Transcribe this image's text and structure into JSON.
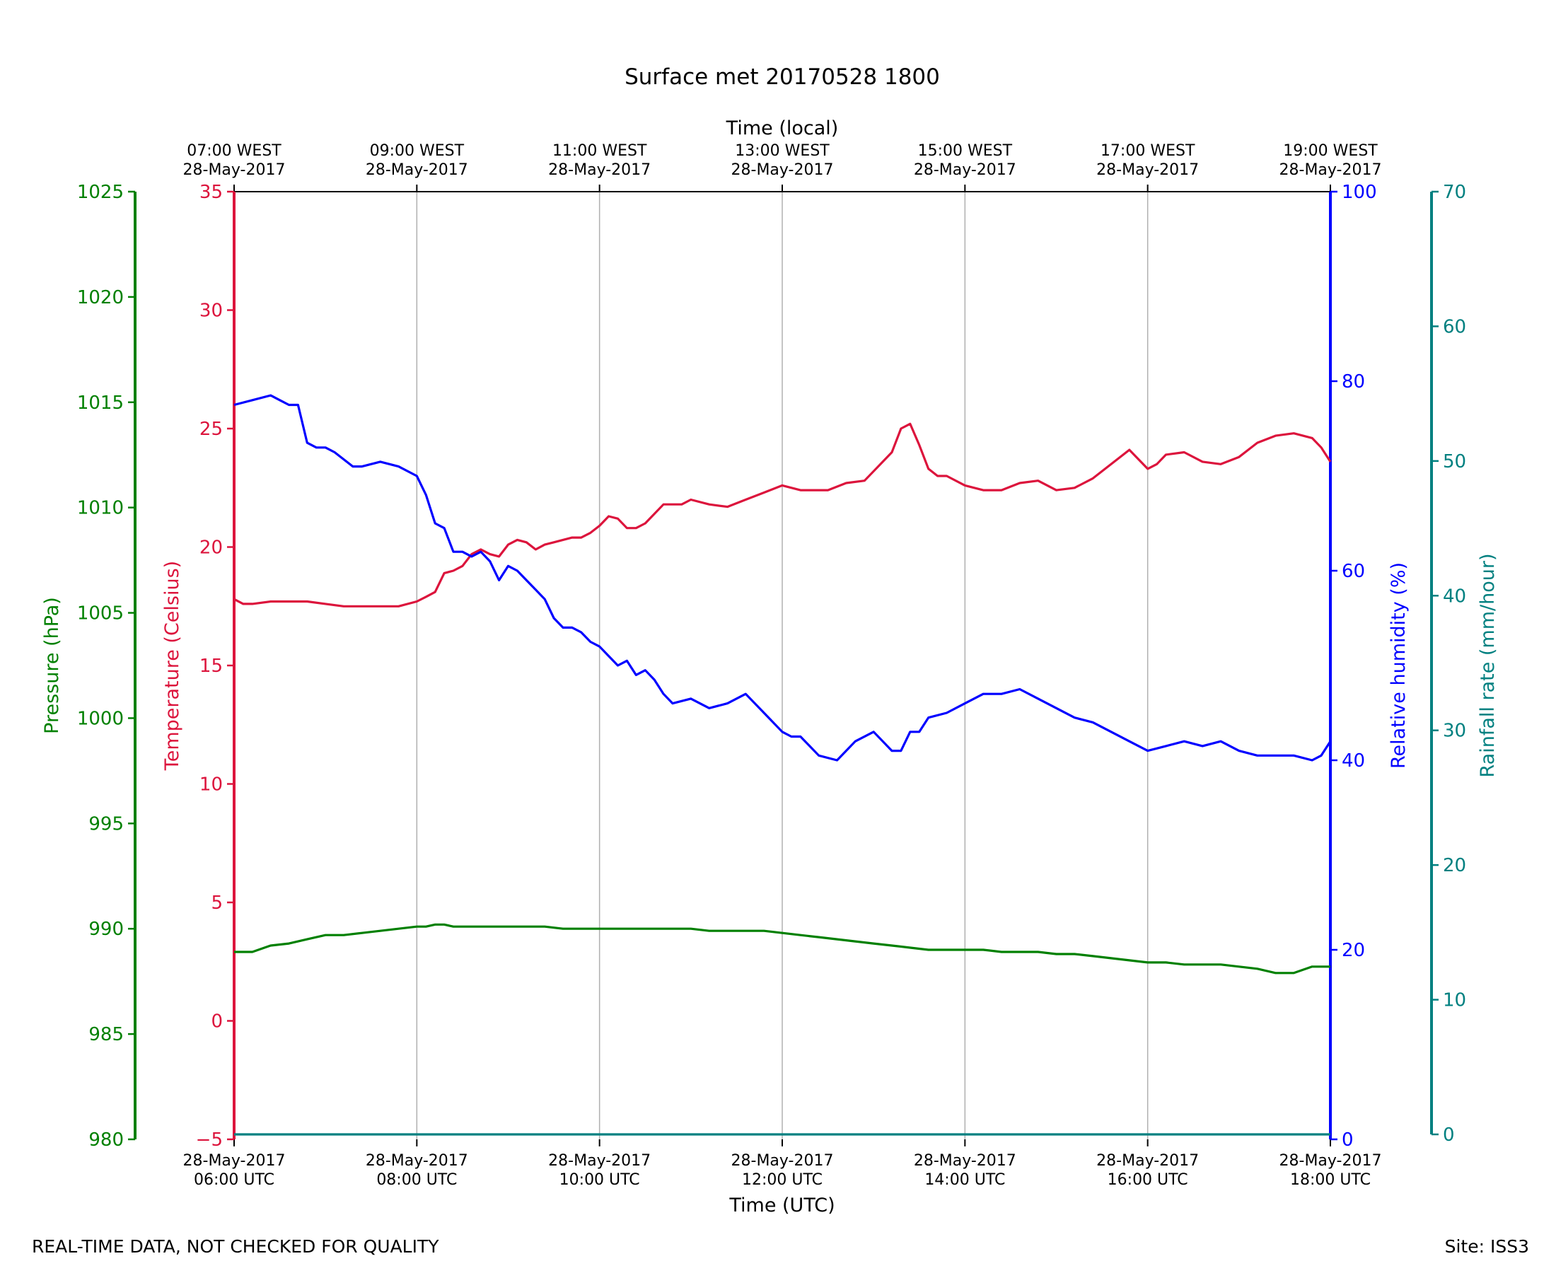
{
  "chart_data": {
    "type": "line",
    "title": "Surface met 20170528 1800",
    "x_top_label": "Time (local)",
    "x_bottom_label": "Time (UTC)",
    "x_range_hours_utc": [
      6,
      18
    ],
    "x_ticks": [
      {
        "hour": 6,
        "utc": [
          "28-May-2017",
          "06:00 UTC"
        ],
        "local": [
          "07:00 WEST",
          "28-May-2017"
        ]
      },
      {
        "hour": 8,
        "utc": [
          "28-May-2017",
          "08:00 UTC"
        ],
        "local": [
          "09:00 WEST",
          "28-May-2017"
        ]
      },
      {
        "hour": 10,
        "utc": [
          "28-May-2017",
          "10:00 UTC"
        ],
        "local": [
          "11:00 WEST",
          "28-May-2017"
        ]
      },
      {
        "hour": 12,
        "utc": [
          "28-May-2017",
          "12:00 UTC"
        ],
        "local": [
          "13:00 WEST",
          "28-May-2017"
        ]
      },
      {
        "hour": 14,
        "utc": [
          "28-May-2017",
          "14:00 UTC"
        ],
        "local": [
          "15:00 WEST",
          "28-May-2017"
        ]
      },
      {
        "hour": 16,
        "utc": [
          "28-May-2017",
          "16:00 UTC"
        ],
        "local": [
          "17:00 WEST",
          "28-May-2017"
        ]
      },
      {
        "hour": 18,
        "utc": [
          "28-May-2017",
          "18:00 UTC"
        ],
        "local": [
          "19:00 WEST",
          "28-May-2017"
        ]
      }
    ],
    "axes": {
      "pressure": {
        "label": "Pressure (hPa)",
        "color": "#008000",
        "range": [
          980,
          1025
        ],
        "ticks": [
          "980",
          "985",
          "990",
          "995",
          "1000",
          "1005",
          "1010",
          "1015",
          "1020",
          "1025"
        ]
      },
      "temperature": {
        "label": "Temperature (Celsius)",
        "color": "#dc143c",
        "range": [
          -5,
          35
        ],
        "ticks": [
          "−5",
          "0",
          "5",
          "10",
          "15",
          "20",
          "25",
          "30",
          "35"
        ]
      },
      "humidity": {
        "label": "Relative humidity (%)",
        "color": "#0000ff",
        "range": [
          0,
          100
        ],
        "ticks": [
          "0",
          "20",
          "40",
          "60",
          "80",
          "100"
        ]
      },
      "rainfall": {
        "label": "Rainfall rate (mm/hour)",
        "color": "#008080",
        "range": [
          0,
          70
        ],
        "ticks": [
          "0",
          "10",
          "20",
          "30",
          "40",
          "50",
          "60",
          "70"
        ]
      }
    },
    "series": [
      {
        "name": "Temperature",
        "axis": "temperature",
        "x": [
          6.0,
          6.1,
          6.2,
          6.4,
          6.6,
          6.8,
          7.0,
          7.2,
          7.4,
          7.6,
          7.8,
          8.0,
          8.1,
          8.2,
          8.3,
          8.4,
          8.5,
          8.6,
          8.7,
          8.8,
          8.9,
          9.0,
          9.1,
          9.2,
          9.3,
          9.4,
          9.5,
          9.6,
          9.7,
          9.8,
          9.9,
          10.0,
          10.1,
          10.2,
          10.3,
          10.4,
          10.5,
          10.7,
          10.9,
          11.0,
          11.2,
          11.4,
          11.6,
          11.8,
          12.0,
          12.2,
          12.3,
          12.5,
          12.7,
          12.9,
          13.0,
          13.2,
          13.3,
          13.4,
          13.5,
          13.6,
          13.7,
          13.8,
          14.0,
          14.2,
          14.4,
          14.6,
          14.8,
          15.0,
          15.2,
          15.4,
          15.6,
          15.8,
          16.0,
          16.1,
          16.2,
          16.4,
          16.6,
          16.8,
          17.0,
          17.2,
          17.4,
          17.6,
          17.8,
          17.9,
          18.0
        ],
        "values": [
          17.8,
          17.6,
          17.6,
          17.7,
          17.7,
          17.7,
          17.6,
          17.5,
          17.5,
          17.5,
          17.5,
          17.7,
          17.9,
          18.1,
          18.9,
          19.0,
          19.2,
          19.7,
          19.9,
          19.7,
          19.6,
          20.1,
          20.3,
          20.2,
          19.9,
          20.1,
          20.2,
          20.3,
          20.4,
          20.4,
          20.6,
          20.9,
          21.3,
          21.2,
          20.8,
          20.8,
          21.0,
          21.8,
          21.8,
          22.0,
          21.8,
          21.7,
          22.0,
          22.3,
          22.6,
          22.4,
          22.4,
          22.4,
          22.7,
          22.8,
          23.2,
          24.0,
          25.0,
          25.2,
          24.3,
          23.3,
          23.0,
          23.0,
          22.6,
          22.4,
          22.4,
          22.7,
          22.8,
          22.4,
          22.5,
          22.9,
          23.5,
          24.1,
          23.3,
          23.5,
          23.9,
          24.0,
          23.6,
          23.5,
          23.8,
          24.4,
          24.7,
          24.8,
          24.6,
          24.2,
          23.6
        ]
      },
      {
        "name": "Relative humidity",
        "axis": "humidity",
        "x": [
          6.0,
          6.2,
          6.4,
          6.5,
          6.6,
          6.7,
          6.8,
          6.9,
          7.0,
          7.1,
          7.3,
          7.4,
          7.6,
          7.8,
          8.0,
          8.1,
          8.2,
          8.3,
          8.4,
          8.5,
          8.6,
          8.7,
          8.8,
          8.9,
          9.0,
          9.1,
          9.2,
          9.3,
          9.4,
          9.5,
          9.6,
          9.7,
          9.8,
          9.9,
          10.0,
          10.1,
          10.2,
          10.3,
          10.4,
          10.5,
          10.6,
          10.7,
          10.8,
          11.0,
          11.2,
          11.4,
          11.6,
          11.8,
          12.0,
          12.1,
          12.2,
          12.4,
          12.6,
          12.8,
          13.0,
          13.1,
          13.2,
          13.3,
          13.4,
          13.5,
          13.6,
          13.8,
          14.0,
          14.2,
          14.4,
          14.6,
          14.8,
          15.0,
          15.2,
          15.4,
          15.6,
          15.8,
          16.0,
          16.2,
          16.4,
          16.6,
          16.8,
          17.0,
          17.2,
          17.4,
          17.6,
          17.8,
          17.9,
          18.0
        ],
        "values": [
          77.5,
          78,
          78.5,
          78,
          77.5,
          77.5,
          73.5,
          73,
          73,
          72.5,
          71,
          71,
          71.5,
          71,
          70,
          68,
          65,
          64.5,
          62,
          62,
          61.5,
          62,
          61,
          59,
          60.5,
          60,
          59,
          58,
          57,
          55,
          54,
          54,
          53.5,
          52.5,
          52,
          51,
          50,
          50.5,
          49,
          49.5,
          48.5,
          47,
          46,
          46.5,
          45.5,
          46,
          47,
          45,
          43,
          42.5,
          42.5,
          40.5,
          40,
          42,
          43,
          42,
          41,
          41,
          43,
          43,
          44.5,
          45,
          46,
          47,
          47,
          47.5,
          46.5,
          45.5,
          44.5,
          44,
          43,
          42,
          41,
          41.5,
          42,
          41.5,
          42,
          41,
          40.5,
          40.5,
          40.5,
          40,
          40.5,
          42
        ]
      },
      {
        "name": "Pressure",
        "axis": "pressure",
        "x": [
          6.0,
          6.2,
          6.4,
          6.6,
          6.8,
          7.0,
          7.2,
          7.4,
          7.6,
          7.8,
          8.0,
          8.1,
          8.2,
          8.3,
          8.4,
          8.6,
          8.8,
          9.0,
          9.2,
          9.4,
          9.6,
          9.8,
          10.0,
          10.2,
          10.4,
          10.6,
          10.8,
          11.0,
          11.2,
          11.4,
          11.6,
          11.8,
          12.0,
          12.2,
          12.4,
          12.6,
          12.8,
          13.0,
          13.2,
          13.4,
          13.6,
          13.8,
          14.0,
          14.2,
          14.4,
          14.6,
          14.8,
          15.0,
          15.2,
          15.4,
          15.6,
          15.8,
          16.0,
          16.2,
          16.4,
          16.6,
          16.8,
          17.0,
          17.2,
          17.4,
          17.6,
          17.8,
          18.0
        ],
        "values": [
          988.9,
          988.9,
          989.2,
          989.3,
          989.5,
          989.7,
          989.7,
          989.8,
          989.9,
          990.0,
          990.1,
          990.1,
          990.2,
          990.2,
          990.1,
          990.1,
          990.1,
          990.1,
          990.1,
          990.1,
          990.0,
          990.0,
          990.0,
          990.0,
          990.0,
          990.0,
          990.0,
          990.0,
          989.9,
          989.9,
          989.9,
          989.9,
          989.8,
          989.7,
          989.6,
          989.5,
          989.4,
          989.3,
          989.2,
          989.1,
          989.0,
          989.0,
          989.0,
          989.0,
          988.9,
          988.9,
          988.9,
          988.8,
          988.8,
          988.7,
          988.6,
          988.5,
          988.4,
          988.4,
          988.3,
          988.3,
          988.3,
          988.2,
          988.1,
          987.9,
          987.9,
          988.2,
          988.2
        ]
      },
      {
        "name": "Rainfall rate",
        "axis": "rainfall",
        "x": [
          6.0,
          18.0
        ],
        "values": [
          0,
          0
        ]
      }
    ]
  },
  "footer": {
    "disclaimer": "REAL-TIME DATA, NOT CHECKED FOR QUALITY",
    "site": "Site: ISS3"
  }
}
